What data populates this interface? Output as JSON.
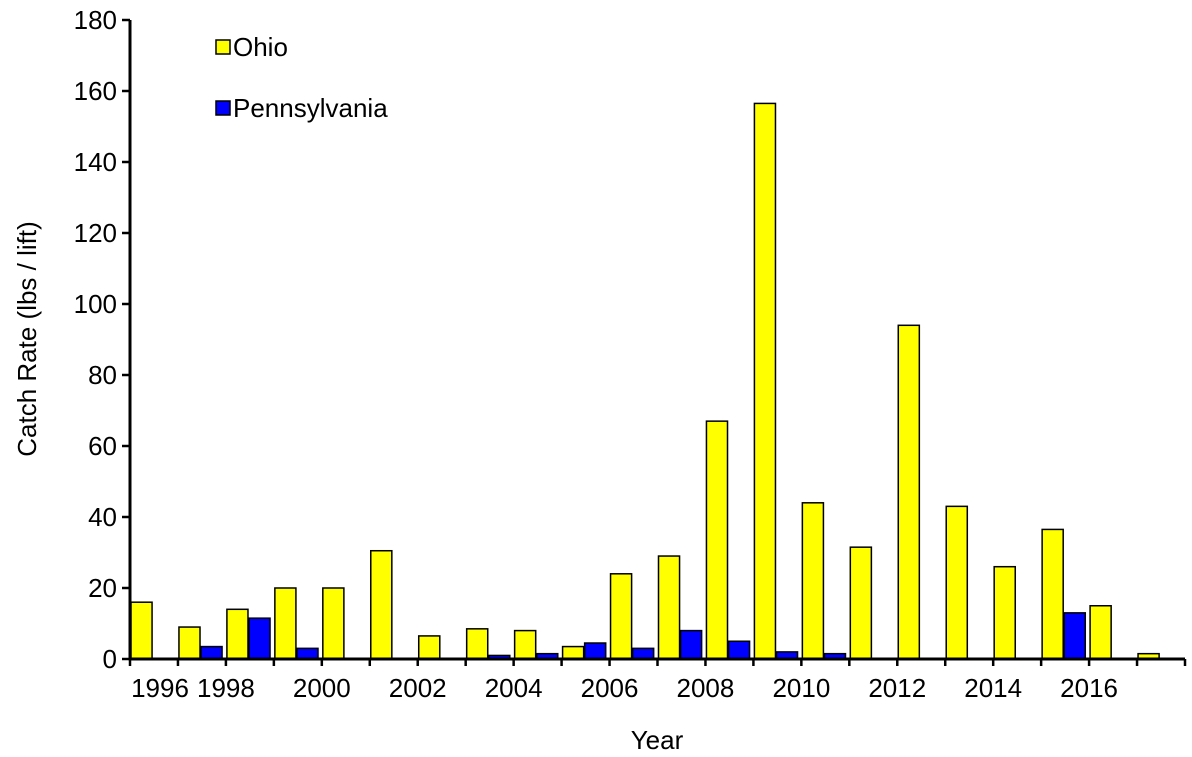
{
  "chart_data": {
    "type": "bar",
    "categories": [
      "1996",
      "1997",
      "1998",
      "1999",
      "2000",
      "2001",
      "2002",
      "2003",
      "2004",
      "2005",
      "2006",
      "2007",
      "2008",
      "2009",
      "2010",
      "2011",
      "2012",
      "2013",
      "2014",
      "2015",
      "2016",
      "2017"
    ],
    "tick_labels": [
      "1996",
      "1998",
      "2000",
      "2002",
      "2004",
      "2006",
      "2008",
      "2010",
      "2012",
      "2014",
      "2016"
    ],
    "series": [
      {
        "name": "Ohio",
        "color": "#FFFF00",
        "values": [
          16,
          9,
          14,
          20,
          20,
          30.5,
          6.5,
          8.5,
          8,
          3.5,
          24,
          29,
          67,
          156.5,
          44,
          31.5,
          94,
          43,
          26,
          36.5,
          15,
          1.5
        ]
      },
      {
        "name": "Pennsylvania",
        "color": "#0000FF",
        "values": [
          0,
          3.5,
          11.5,
          3,
          0,
          0,
          0,
          1,
          1.5,
          4.5,
          3,
          8,
          5,
          2,
          1.5,
          0,
          0,
          0,
          0,
          13,
          0,
          0
        ]
      }
    ],
    "xlabel": "Year",
    "ylabel": "Catch Rate (lbs / lift)",
    "ylim": [
      0,
      180
    ],
    "yticks": [
      0,
      20,
      40,
      60,
      80,
      100,
      120,
      140,
      160,
      180
    ],
    "grid": false,
    "legend_position": "top-left"
  }
}
